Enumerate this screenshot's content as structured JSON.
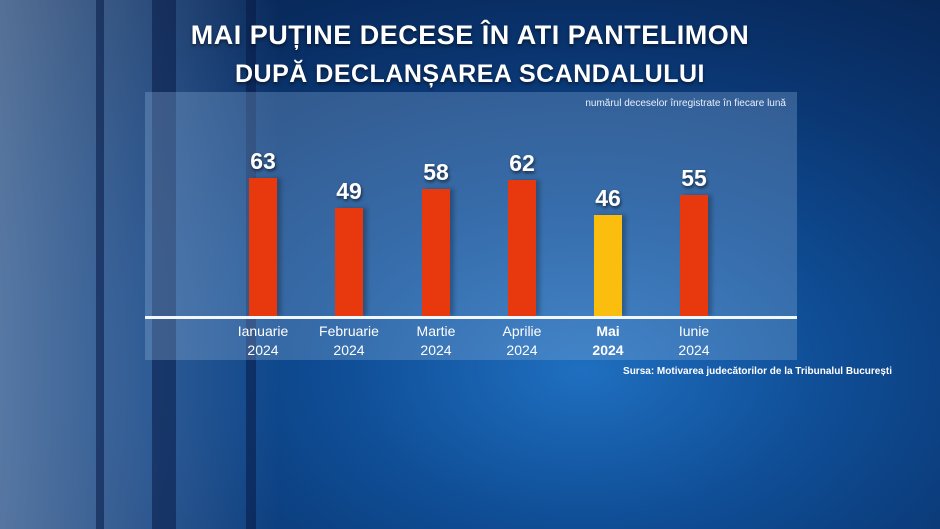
{
  "title": "MAI PUȚINE DECESE ÎN ATI PANTELIMON",
  "subtitle": "DUPĂ DECLANȘAREA SCANDALULUI",
  "note": "numărul deceselor înregistrate în fiecare lună",
  "source": "Sursa: Motivarea judecătorilor de la Tribunalul București",
  "colors": {
    "normal": "#e8380d",
    "highlight": "#fbbd0e"
  },
  "chart_data": {
    "type": "bar",
    "categories": [
      [
        "Ianuarie",
        "2024"
      ],
      [
        "Februarie",
        "2024"
      ],
      [
        "Martie",
        "2024"
      ],
      [
        "Aprilie",
        "2024"
      ],
      [
        "Mai",
        "2024"
      ],
      [
        "Iunie",
        "2024"
      ]
    ],
    "values": [
      63,
      49,
      58,
      62,
      46,
      55
    ],
    "highlight_index": 4,
    "ylim": [
      0,
      72
    ]
  }
}
